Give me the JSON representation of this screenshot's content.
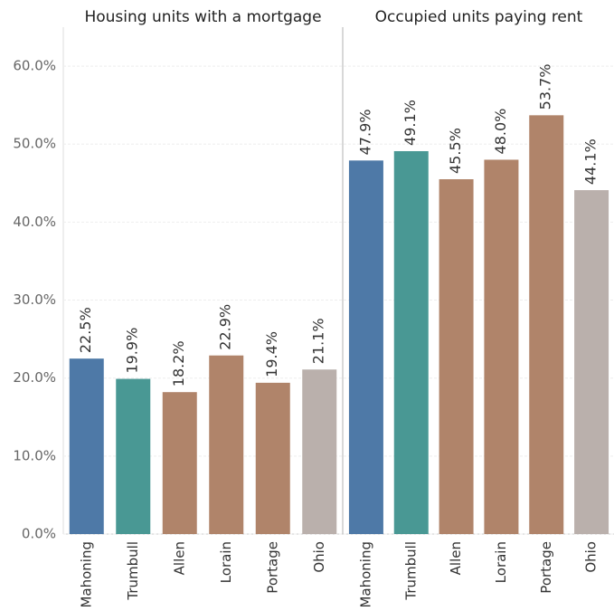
{
  "chart_data": [
    {
      "type": "bar",
      "title": "Housing units with a mortgage",
      "categories": [
        "Mahoning",
        "Trumbull",
        "Allen",
        "Lorain",
        "Portage",
        "Ohio"
      ],
      "values": [
        22.5,
        19.9,
        18.2,
        22.9,
        19.4,
        21.1
      ],
      "value_labels": [
        "22.5%",
        "19.9%",
        "18.2%",
        "22.9%",
        "19.4%",
        "21.1%"
      ],
      "colors": [
        "#4e79a7",
        "#499894",
        "#b0846a",
        "#b0846a",
        "#b0846a",
        "#bab0ac"
      ],
      "ylim": [
        0,
        65
      ],
      "yticks": [
        {
          "value": 0,
          "label": "0.0%"
        },
        {
          "value": 10,
          "label": "10.0%"
        },
        {
          "value": 20,
          "label": "20.0%"
        },
        {
          "value": 30,
          "label": "30.0%"
        },
        {
          "value": 40,
          "label": "40.0%"
        },
        {
          "value": 50,
          "label": "50.0%"
        },
        {
          "value": 60,
          "label": "60.0%"
        }
      ],
      "grid": true
    },
    {
      "type": "bar",
      "title": "Occupied units paying rent",
      "categories": [
        "Mahoning",
        "Trumbull",
        "Allen",
        "Lorain",
        "Portage",
        "Ohio"
      ],
      "values": [
        47.9,
        49.1,
        45.5,
        48.0,
        53.7,
        44.1
      ],
      "value_labels": [
        "47.9%",
        "49.1%",
        "45.5%",
        "48.0%",
        "53.7%",
        "44.1%"
      ],
      "colors": [
        "#4e79a7",
        "#499894",
        "#b0846a",
        "#b0846a",
        "#b0846a",
        "#bab0ac"
      ],
      "ylim": [
        0,
        65
      ],
      "yticks": [
        {
          "value": 0,
          "label": "0.0%"
        },
        {
          "value": 10,
          "label": "10.0%"
        },
        {
          "value": 20,
          "label": "20.0%"
        },
        {
          "value": 30,
          "label": "30.0%"
        },
        {
          "value": 40,
          "label": "40.0%"
        },
        {
          "value": 50,
          "label": "50.0%"
        },
        {
          "value": 60,
          "label": "60.0%"
        }
      ],
      "grid": true
    }
  ]
}
